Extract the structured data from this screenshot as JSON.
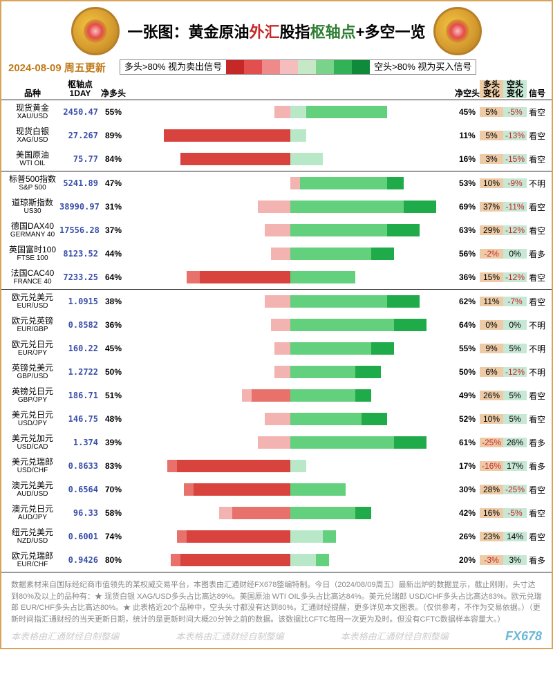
{
  "title_plain": "一张图：",
  "title_parts": [
    {
      "t": "黄金原油",
      "c": "#000000"
    },
    {
      "t": "外汇",
      "c": "#c62828"
    },
    {
      "t": "股指",
      "c": "#000000"
    },
    {
      "t": "枢轴点",
      "c": "#2e7d32"
    },
    {
      "t": "+多空一览",
      "c": "#000000"
    }
  ],
  "date_text": "2024-08-09 周五更新",
  "date_color": "#c07a1a",
  "legend": {
    "left_text": "多头>80% 视为卖出信号",
    "right_text": "空头>80% 视为买入信号",
    "colors": [
      "#c62828",
      "#e34f4f",
      "#ef8a8a",
      "#f5bdbd",
      "#c7e8c7",
      "#79d38b",
      "#32b257",
      "#0f8a3a"
    ]
  },
  "columns": {
    "c1": "品种",
    "c2a": "枢轴点",
    "c2b": "1DAY",
    "c3": "净多头",
    "c5": "净空头",
    "c6a": "多头",
    "c6b": "变化",
    "c7a": "空头",
    "c7b": "变化",
    "c8": "信号"
  },
  "col_bg": {
    "long": "#edcba7",
    "short": "#c7e8d4"
  },
  "bar_palette": {
    "long_solid": "#d9433e",
    "long_mid": "#e8716c",
    "long_light": "#f3b3b0",
    "short_light": "#b8e8c8",
    "short_mid": "#63d07e",
    "short_solid": "#1fab4a"
  },
  "sections": [
    {
      "rows": [
        {
          "cn": "现货黄金",
          "en": "XAU/USD",
          "pivot": "2450.47",
          "long": 55,
          "short": 45,
          "lc": "5%",
          "sc": "-5%",
          "sig": "看空",
          "segs": [
            {
              "f": 50,
              "t": 55,
              "c": "long_light"
            },
            {
              "f": 45,
              "t": 50,
              "c": "short_light"
            },
            {
              "f": 30,
              "t": 45,
              "c": "short_mid"
            },
            {
              "f": 20,
              "t": 30,
              "c": "short_mid"
            }
          ]
        },
        {
          "cn": "现货白银",
          "en": "XAG/USD",
          "pivot": "27.267",
          "long": 89,
          "short": 11,
          "lc": "5%",
          "sc": "-13%",
          "sig": "看空",
          "segs": [
            {
              "f": 50,
              "t": 89,
              "c": "long_solid"
            },
            {
              "f": 48,
              "t": 50,
              "c": "short_light"
            },
            {
              "f": 45,
              "t": 48,
              "c": "short_light"
            }
          ]
        },
        {
          "cn": "美国原油",
          "en": "WTI OIL",
          "pivot": "75.77",
          "long": 84,
          "short": 16,
          "lc": "3%",
          "sc": "-15%",
          "sig": "看空",
          "segs": [
            {
              "f": 50,
              "t": 84,
              "c": "long_solid"
            },
            {
              "f": 45,
              "t": 50,
              "c": "short_light"
            },
            {
              "f": 40,
              "t": 45,
              "c": "short_light"
            }
          ]
        }
      ]
    },
    {
      "rows": [
        {
          "cn": "标普500指数",
          "en": "S&P 500",
          "pivot": "5241.89",
          "long": 47,
          "short": 53,
          "lc": "10%",
          "sc": "-9%",
          "sig": "不明",
          "segs": [
            {
              "f": 47,
              "t": 50,
              "c": "long_light"
            },
            {
              "f": 20,
              "t": 47,
              "c": "short_mid"
            },
            {
              "f": 15,
              "t": 20,
              "c": "short_solid"
            }
          ]
        },
        {
          "cn": "道琼斯指数",
          "en": "US30",
          "pivot": "38990.97",
          "long": 31,
          "short": 69,
          "lc": "37%",
          "sc": "-11%",
          "sig": "看空",
          "segs": [
            {
              "f": 50,
              "t": 60,
              "c": "long_light"
            },
            {
              "f": 15,
              "t": 50,
              "c": "short_mid"
            },
            {
              "f": 5,
              "t": 15,
              "c": "short_solid"
            }
          ]
        },
        {
          "cn": "德国DAX40",
          "en": "GERMANY 40",
          "pivot": "17556.28",
          "long": 37,
          "short": 63,
          "lc": "29%",
          "sc": "-12%",
          "sig": "看空",
          "segs": [
            {
              "f": 50,
              "t": 58,
              "c": "long_light"
            },
            {
              "f": 20,
              "t": 50,
              "c": "short_mid"
            },
            {
              "f": 10,
              "t": 20,
              "c": "short_solid"
            }
          ]
        },
        {
          "cn": "英国富时100",
          "en": "FTSE 100",
          "pivot": "8123.52",
          "long": 44,
          "short": 56,
          "lc": "-2%",
          "sc": "0%",
          "sig": "看多",
          "segs": [
            {
              "f": 50,
              "t": 56,
              "c": "long_light"
            },
            {
              "f": 25,
              "t": 50,
              "c": "short_mid"
            },
            {
              "f": 18,
              "t": 25,
              "c": "short_solid"
            }
          ]
        },
        {
          "cn": "法国CAC40",
          "en": "FRANCE 40",
          "pivot": "7233.25",
          "long": 64,
          "short": 36,
          "lc": "15%",
          "sc": "-12%",
          "sig": "看空",
          "segs": [
            {
              "f": 50,
              "t": 78,
              "c": "long_solid"
            },
            {
              "f": 78,
              "t": 82,
              "c": "long_mid"
            },
            {
              "f": 35,
              "t": 50,
              "c": "short_mid"
            },
            {
              "f": 30,
              "t": 35,
              "c": "short_mid"
            }
          ]
        }
      ]
    },
    {
      "rows": [
        {
          "cn": "欧元兑美元",
          "en": "EUR/USD",
          "pivot": "1.0915",
          "long": 38,
          "short": 62,
          "lc": "11%",
          "sc": "-7%",
          "sig": "看空",
          "segs": [
            {
              "f": 50,
              "t": 58,
              "c": "long_light"
            },
            {
              "f": 20,
              "t": 50,
              "c": "short_mid"
            },
            {
              "f": 10,
              "t": 20,
              "c": "short_solid"
            }
          ]
        },
        {
          "cn": "欧元兑英镑",
          "en": "EUR/GBP",
          "pivot": "0.8582",
          "long": 36,
          "short": 64,
          "lc": "0%",
          "sc": "0%",
          "sig": "不明",
          "segs": [
            {
              "f": 50,
              "t": 56,
              "c": "long_light"
            },
            {
              "f": 18,
              "t": 50,
              "c": "short_mid"
            },
            {
              "f": 8,
              "t": 18,
              "c": "short_solid"
            }
          ]
        },
        {
          "cn": "欧元兑日元",
          "en": "EUR/JPY",
          "pivot": "160.22",
          "long": 45,
          "short": 55,
          "lc": "9%",
          "sc": "5%",
          "sig": "不明",
          "segs": [
            {
              "f": 50,
              "t": 55,
              "c": "long_light"
            },
            {
              "f": 25,
              "t": 50,
              "c": "short_mid"
            },
            {
              "f": 18,
              "t": 25,
              "c": "short_solid"
            }
          ]
        },
        {
          "cn": "英镑兑美元",
          "en": "GBP/USD",
          "pivot": "1.2722",
          "long": 50,
          "short": 50,
          "lc": "6%",
          "sc": "-12%",
          "sig": "不明",
          "segs": [
            {
              "f": 50,
              "t": 55,
              "c": "long_light"
            },
            {
              "f": 30,
              "t": 50,
              "c": "short_mid"
            },
            {
              "f": 22,
              "t": 30,
              "c": "short_solid"
            }
          ]
        },
        {
          "cn": "英镑兑日元",
          "en": "GBP/JPY",
          "pivot": "186.71",
          "long": 51,
          "short": 49,
          "lc": "26%",
          "sc": "5%",
          "sig": "看空",
          "segs": [
            {
              "f": 50,
              "t": 62,
              "c": "long_mid"
            },
            {
              "f": 62,
              "t": 65,
              "c": "long_light"
            },
            {
              "f": 30,
              "t": 50,
              "c": "short_mid"
            },
            {
              "f": 25,
              "t": 30,
              "c": "short_solid"
            }
          ]
        },
        {
          "cn": "美元兑日元",
          "en": "USD/JPY",
          "pivot": "146.75",
          "long": 48,
          "short": 52,
          "lc": "10%",
          "sc": "5%",
          "sig": "看空",
          "segs": [
            {
              "f": 50,
              "t": 58,
              "c": "long_light"
            },
            {
              "f": 28,
              "t": 50,
              "c": "short_mid"
            },
            {
              "f": 20,
              "t": 28,
              "c": "short_solid"
            }
          ]
        },
        {
          "cn": "美元兑加元",
          "en": "USD/CAD",
          "pivot": "1.374",
          "long": 39,
          "short": 61,
          "lc": "-25%",
          "sc": "26%",
          "sig": "看多",
          "segs": [
            {
              "f": 50,
              "t": 60,
              "c": "long_light"
            },
            {
              "f": 18,
              "t": 50,
              "c": "short_mid"
            },
            {
              "f": 8,
              "t": 18,
              "c": "short_solid"
            }
          ]
        },
        {
          "cn": "美元兑瑞郎",
          "en": "USD/CHF",
          "pivot": "0.8633",
          "long": 83,
          "short": 17,
          "lc": "-16%",
          "sc": "17%",
          "sig": "看多",
          "segs": [
            {
              "f": 50,
              "t": 85,
              "c": "long_solid"
            },
            {
              "f": 85,
              "t": 88,
              "c": "long_mid"
            },
            {
              "f": 45,
              "t": 50,
              "c": "short_light"
            }
          ]
        },
        {
          "cn": "澳元兑美元",
          "en": "AUD/USD",
          "pivot": "0.6564",
          "long": 70,
          "short": 30,
          "lc": "28%",
          "sc": "-25%",
          "sig": "看空",
          "segs": [
            {
              "f": 50,
              "t": 80,
              "c": "long_solid"
            },
            {
              "f": 80,
              "t": 83,
              "c": "long_mid"
            },
            {
              "f": 38,
              "t": 50,
              "c": "short_mid"
            },
            {
              "f": 33,
              "t": 38,
              "c": "short_mid"
            }
          ]
        },
        {
          "cn": "澳元兑日元",
          "en": "AUD/JPY",
          "pivot": "96.33",
          "long": 58,
          "short": 42,
          "lc": "16%",
          "sc": "-5%",
          "sig": "看空",
          "segs": [
            {
              "f": 50,
              "t": 68,
              "c": "long_mid"
            },
            {
              "f": 68,
              "t": 72,
              "c": "long_light"
            },
            {
              "f": 30,
              "t": 50,
              "c": "short_mid"
            },
            {
              "f": 25,
              "t": 30,
              "c": "short_solid"
            }
          ]
        },
        {
          "cn": "纽元兑美元",
          "en": "NZD/USD",
          "pivot": "0.6001",
          "long": 74,
          "short": 26,
          "lc": "23%",
          "sc": "14%",
          "sig": "看空",
          "segs": [
            {
              "f": 50,
              "t": 82,
              "c": "long_solid"
            },
            {
              "f": 82,
              "t": 85,
              "c": "long_mid"
            },
            {
              "f": 40,
              "t": 50,
              "c": "short_light"
            },
            {
              "f": 36,
              "t": 40,
              "c": "short_mid"
            }
          ]
        },
        {
          "cn": "欧元兑瑞郎",
          "en": "EUR/CHF",
          "pivot": "0.9426",
          "long": 80,
          "short": 20,
          "lc": "-3%",
          "sc": "3%",
          "sig": "看多",
          "segs": [
            {
              "f": 50,
              "t": 84,
              "c": "long_solid"
            },
            {
              "f": 84,
              "t": 87,
              "c": "long_mid"
            },
            {
              "f": 42,
              "t": 50,
              "c": "short_light"
            },
            {
              "f": 38,
              "t": 42,
              "c": "short_mid"
            }
          ]
        }
      ]
    }
  ],
  "footer_text": "数据素材来自国际经纪商市值领先的某权威交易平台，本图表由汇通财经FX678整编特制。今日（2024/08/09周五）最新出炉的数据显示，截止刚刚，头寸达到80%及以上的品种有：★ 现货白银 XAG/USD多头占比高达89%。美国原油 WTI OIL多头占比高达84%。美元兑瑞郎 USD/CHF多头占比高达83%。欧元兑瑞郎 EUR/CHF多头占比高达80%。★ 此表格近20个品种中，空头头寸都没有达到80%。汇通财经提醒，更多详见本文图表。（仅供参考，不作为交易依据。）（更新时间指汇通财经的当天更新日期，统计的是更新时间大概20分钟之前的数据。该数据比CFTC每周一次更为及时。但没有CFTC数据样本容量大。）",
  "watermark": "本表格由汇通财经自制整编",
  "brand": "FX678",
  "pivot_color": "#3a4fa8"
}
